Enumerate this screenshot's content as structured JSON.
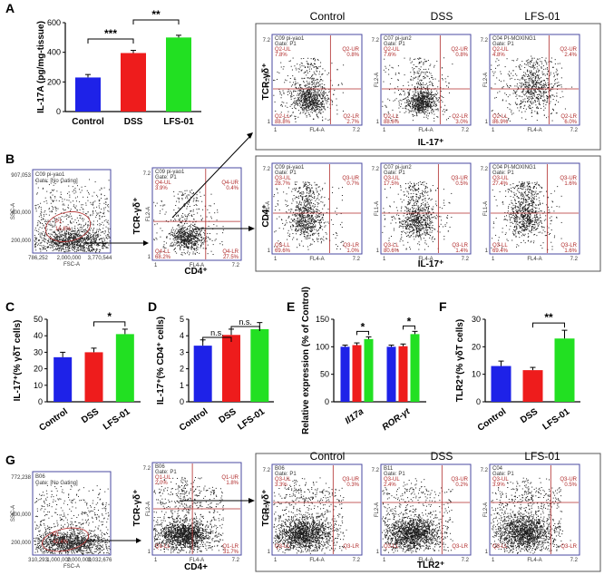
{
  "panel_labels": [
    "A",
    "B",
    "C",
    "D",
    "E",
    "F",
    "G"
  ],
  "colors": {
    "control": "#1e22e8",
    "dss": "#ee1c1c",
    "lfs": "#22e022",
    "flow_box": "#4a4aa0",
    "gate": "#b02a2a"
  },
  "charts": {
    "A": {
      "type": "bar",
      "categories": [
        "Control",
        "DSS",
        "LFS-01"
      ],
      "values": [
        230,
        395,
        500
      ],
      "errors": [
        20,
        18,
        15
      ],
      "ylabel": "IL-17A (pg/mg-tissue)",
      "ylim": [
        0,
        600
      ],
      "yticks": [
        "0",
        "200",
        "400",
        "600"
      ],
      "sig": [
        {
          "from": 0,
          "to": 1,
          "label": "***"
        },
        {
          "from": 1,
          "to": 2,
          "label": "**"
        }
      ]
    },
    "C": {
      "type": "bar",
      "categories": [
        "Control",
        "DSS",
        "LFS-01"
      ],
      "values": [
        27,
        30,
        41
      ],
      "errors": [
        3,
        2.5,
        3
      ],
      "ylabel": "IL-17⁺(% γδT cells)",
      "ylim": [
        0,
        50
      ],
      "yticks": [
        "0",
        "10",
        "20",
        "30",
        "40",
        "50"
      ],
      "sig": [
        {
          "from": 1,
          "to": 2,
          "label": "*"
        }
      ]
    },
    "D": {
      "type": "bar",
      "categories": [
        "Control",
        "DSS",
        "LFS-01"
      ],
      "values": [
        3.4,
        4.05,
        4.4
      ],
      "errors": [
        0.35,
        0.35,
        0.4
      ],
      "ylabel": "IL-17⁺(% CD4⁺ cells)",
      "ylim": [
        0,
        5
      ],
      "yticks": [
        "0",
        "1",
        "2",
        "3",
        "4",
        "5"
      ],
      "sig": [
        {
          "from": 0,
          "to": 1,
          "label": "n.s."
        },
        {
          "from": 1,
          "to": 2,
          "label": "n.s."
        }
      ]
    },
    "E": {
      "type": "bar",
      "groups": [
        "Il17a",
        "ROR-γt"
      ],
      "values": [
        [
          100,
          103,
          114
        ],
        [
          100,
          101,
          123
        ]
      ],
      "errors": [
        [
          3,
          4,
          4
        ],
        [
          3,
          4,
          5
        ]
      ],
      "ylabel": "Relative expression (% of Control)",
      "ylim": [
        0,
        150
      ],
      "yticks": [
        "0",
        "50",
        "100",
        "150"
      ],
      "sig": [
        "*",
        "*"
      ]
    },
    "F": {
      "type": "bar",
      "categories": [
        "Control",
        "DSS",
        "LFS-01"
      ],
      "values": [
        13,
        11.5,
        23
      ],
      "errors": [
        1.8,
        1,
        3
      ],
      "ylabel": "TLR2⁺(% γδT cells)",
      "ylim": [
        0,
        30
      ],
      "yticks": [
        "0",
        "10",
        "20",
        "30"
      ],
      "sig": [
        {
          "from": 1,
          "to": 2,
          "label": "**"
        }
      ]
    }
  },
  "flow": {
    "A_titles": [
      "Control",
      "DSS",
      "LFS-01"
    ],
    "A_plots": [
      {
        "sample": "C09 pi-yao1",
        "gate": "Gate: P1",
        "ul": "Q2-UL",
        "ul_v": "7.8%",
        "ur": "Q2-UR",
        "ur_v": "0.8%",
        "ll": "Q2-LL",
        "ll_v": "88.8%",
        "lr": "Q2-LR",
        "lr_v": "2.7%"
      },
      {
        "sample": "C07 pi-jun2",
        "gate": "Gate: P1",
        "ul": "Q2-UL",
        "ul_v": "7.6%",
        "ur": "Q2-UR",
        "ur_v": "0.8%",
        "ll": "Q2-LL",
        "ll_v": "88.6%",
        "lr": "Q2-LR",
        "lr_v": "3.0%"
      },
      {
        "sample": "C04 PI-MOXING1",
        "gate": "Gate: P1",
        "ul": "Q2-UL",
        "ul_v": "4.8%",
        "ur": "Q2-UR",
        "ur_v": "2.4%",
        "ll": "Q2-LL",
        "ll_v": "86.9%",
        "lr": "Q2-LR",
        "lr_v": "6.0%"
      }
    ],
    "A_ylabel": "TCR-γδ⁺",
    "A_xlabel": "IL-17⁺",
    "B_ungated": {
      "sample": "C09 pi-yao1",
      "gate": "Gate: [No Gating]",
      "gate_name": "P1",
      "gate_pct": "16.8%",
      "xlabel": "FSC-A",
      "ylabel": "SSC-A",
      "xticks": [
        "786,252",
        "2,000,000",
        "3,770,544"
      ],
      "yticks": [
        "907,053",
        "400,000",
        "200,000"
      ]
    },
    "B_cd4": {
      "sample": "C09 pi-yao1",
      "gate": "Gate: P1",
      "ul": "Q4-UL",
      "ul_v": "3.9%",
      "ur": "Q4-UR",
      "ur_v": "0.4%",
      "ll": "Q4-LL",
      "ll_v": "68.2%",
      "lr": "Q4-LR",
      "lr_v": "27.5%",
      "xlabel": "CD4⁺",
      "ylabel": "TCR-γδ⁺"
    },
    "B_plots": [
      {
        "sample": "C09 pi-yao1",
        "gate": "Gate: P1",
        "ul": "Q3-UL",
        "ul_v": "28.7%",
        "ur": "Q3-UR",
        "ur_v": "0.7%",
        "ll": "Q3-LL",
        "ll_v": "69.6%",
        "lr": "Q3-LR",
        "lr_v": "1.0%"
      },
      {
        "sample": "C07 pi-jun2",
        "gate": "Gate: P1",
        "ul": "Q3-UL",
        "ul_v": "17.5%",
        "ur": "Q3-UR",
        "ur_v": "0.5%",
        "ll": "Q3-LL",
        "ll_v": "80.6%",
        "lr": "Q3-LR",
        "lr_v": "1.4%"
      },
      {
        "sample": "C04 PI-MOXING1",
        "gate": "Gate: P1",
        "ul": "Q3-UL",
        "ul_v": "27.4%",
        "ur": "Q3-UR",
        "ur_v": "1.6%",
        "ll": "Q3-LL",
        "ll_v": "69.4%",
        "lr": "Q3-LR",
        "lr_v": "1.6%"
      }
    ],
    "B_ylabel": "CD4⁺",
    "B_xlabel": "IL-17⁺",
    "G_titles": [
      "Control",
      "DSS",
      "LFS-01"
    ],
    "G_ungated": {
      "sample": "B06",
      "gate": "Gate: [No Gating]",
      "gate_name": "P1",
      "gate_pct": "42.4%",
      "xlabel": "FSC-A",
      "ylabel": "SSC-A",
      "xticks": [
        "310,293",
        "1,000,000",
        "2,000,000",
        "3,032,676"
      ],
      "yticks": [
        "772,238",
        "400,000",
        "200,000"
      ]
    },
    "G_cd4": {
      "sample": "B06",
      "gate": "Gate: P1",
      "ul": "Q1-UL",
      "ul_v": "2.0%",
      "ur": "Q1-UR",
      "ur_v": "1.8%",
      "ll": "Q1-LL",
      "ll_v": "",
      "lr": "Q1-LR",
      "lr_v": "31.7%",
      "xlabel": "CD4+",
      "ylabel": "TCR-γδ⁺"
    },
    "G_plots": [
      {
        "sample": "B06",
        "gate": "Gate: P1",
        "ul": "Q3-UL",
        "ul_v": "3.3%",
        "ur": "Q3-UR",
        "ur_v": "0.3%",
        "ll": "Q3-LL",
        "ll_v": "",
        "lr": "Q3-LR",
        "lr_v": ""
      },
      {
        "sample": "B11",
        "gate": "Gate: P1",
        "ul": "Q3-UL",
        "ul_v": "2.4%",
        "ur": "Q3-UR",
        "ur_v": "0.2%",
        "ll": "Q3-LL",
        "ll_v": "",
        "lr": "Q3-LR",
        "lr_v": ""
      },
      {
        "sample": "C04",
        "gate": "Gate: P1",
        "ul": "Q3-UL",
        "ul_v": "3.9%",
        "ur": "Q3-UR",
        "ur_v": "0.5%",
        "ll": "Q3-LL",
        "ll_v": "",
        "lr": "Q3-LR",
        "lr_v": ""
      }
    ],
    "G_ylabel": "TCR-γδ⁺",
    "G_xlabel": "TLR2⁺",
    "axis_x_ch": "FL4-A",
    "axis_y_ch": "FL2-A",
    "axis_y_ch_b": "FL1-A",
    "tick_lo": "1",
    "tick_hi": "7.2"
  }
}
